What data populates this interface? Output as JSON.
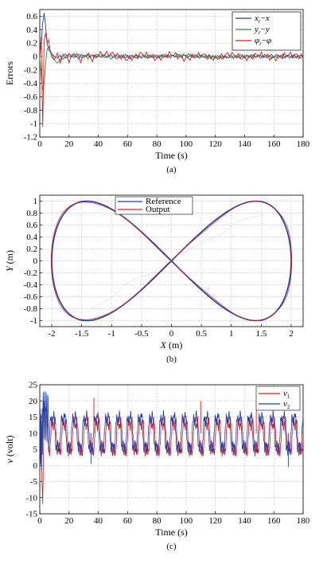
{
  "chart_data": [
    {
      "id": "a",
      "type": "line",
      "caption": "(a)",
      "xlabel": "Time (s)",
      "ylabel": "Errors",
      "xlim": [
        0,
        180
      ],
      "ylim": [
        -1.2,
        0.7
      ],
      "xticks": [
        0,
        20,
        40,
        60,
        80,
        100,
        120,
        140,
        160,
        180
      ],
      "yticks": [
        0.6,
        0.4,
        0.2,
        0,
        -0.2,
        -0.4,
        -0.6,
        -0.8,
        -1,
        -1.2
      ],
      "grid": true,
      "legend_position": "top-right",
      "series": [
        {
          "name": "x_r − x",
          "color": "#1f3fa8",
          "x": [
            0,
            1,
            2,
            3,
            4,
            5,
            6,
            8,
            10,
            12,
            14,
            16,
            20,
            25,
            30,
            40,
            50,
            60,
            80,
            100,
            120,
            140,
            160,
            180
          ],
          "y": [
            0.0,
            0.2,
            0.5,
            0.65,
            0.45,
            0.2,
            0.1,
            0.05,
            0.0,
            -0.02,
            0.02,
            -0.05,
            0.03,
            -0.02,
            0.02,
            0.0,
            0.01,
            -0.01,
            0.0,
            0.01,
            -0.01,
            0.0,
            0.01,
            0.0
          ]
        },
        {
          "name": "y_r − y",
          "color": "#2e8b3a",
          "x": [
            0,
            1,
            2,
            3,
            4,
            5,
            6,
            7,
            8,
            10,
            12,
            14,
            16,
            20,
            25,
            30,
            40,
            50,
            60,
            80,
            100,
            120,
            140,
            160,
            180
          ],
          "y": [
            0.0,
            -0.3,
            -0.5,
            -0.4,
            -0.1,
            0.1,
            0.15,
            0.1,
            0.05,
            -0.05,
            -0.1,
            -0.05,
            0.02,
            0.0,
            0.03,
            -0.02,
            0.02,
            -0.02,
            0.01,
            0.0,
            0.02,
            -0.01,
            0.01,
            -0.01,
            0.0
          ]
        },
        {
          "name": "φ_r − φ",
          "color": "#d42020",
          "x": [
            0,
            1,
            2,
            3,
            4,
            5,
            6,
            7,
            8,
            10,
            12,
            14,
            16,
            20,
            24,
            28,
            32,
            36,
            40,
            50,
            60,
            70,
            80,
            90,
            100,
            110,
            120,
            130,
            140,
            150,
            160,
            170,
            180
          ],
          "y": [
            0.0,
            0.3,
            -1.05,
            0.25,
            0.35,
            0.2,
            0.25,
            0.1,
            0.0,
            -0.05,
            0.05,
            -0.1,
            0.05,
            -0.05,
            0.05,
            -0.05,
            0.04,
            -0.04,
            0.03,
            0.04,
            -0.04,
            0.04,
            -0.03,
            0.04,
            -0.04,
            0.03,
            -0.03,
            0.04,
            -0.03,
            0.03,
            -0.03,
            0.03,
            0.0
          ]
        }
      ]
    },
    {
      "id": "b",
      "type": "line",
      "caption": "(b)",
      "xlabel": "X (m)",
      "ylabel": "Y (m)",
      "xlim": [
        -2.2,
        2.2
      ],
      "ylim": [
        -1.1,
        1.1
      ],
      "xticks": [
        -2,
        -1.5,
        -1,
        -0.5,
        0,
        0.5,
        1,
        1.5,
        2
      ],
      "yticks": [
        1,
        0.8,
        0.6,
        0.4,
        0.2,
        0,
        -0.2,
        -0.4,
        -0.6,
        -0.8,
        -1
      ],
      "grid": true,
      "legend_position": "top-center",
      "curve": "lemniscate x = 2·sin(t), y = sin(2t)",
      "series": [
        {
          "name": "Reference",
          "color": "#1f3fa8"
        },
        {
          "name": "Output",
          "color": "#d42020"
        }
      ]
    },
    {
      "id": "c",
      "type": "line",
      "caption": "(c)",
      "xlabel": "Time (s)",
      "ylabel": "v (volt)",
      "xlim": [
        0,
        180
      ],
      "ylim": [
        -15,
        25
      ],
      "xticks": [
        0,
        20,
        40,
        60,
        80,
        100,
        120,
        140,
        160,
        180
      ],
      "yticks": [
        25,
        20,
        15,
        10,
        5,
        0,
        -5,
        -10,
        -15
      ],
      "grid": true,
      "legend_position": "top-right",
      "series": [
        {
          "name": "v1",
          "color": "#d42020",
          "mean": 9,
          "amplitude": 5,
          "period": 7.5
        },
        {
          "name": "v2",
          "color": "#1f3fa8",
          "mean": 10,
          "amplitude": 5.5,
          "period": 7.5
        }
      ]
    }
  ]
}
